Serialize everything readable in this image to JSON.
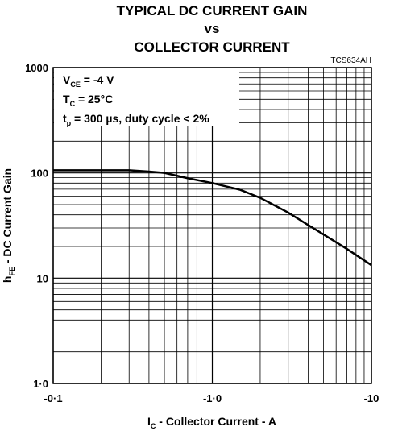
{
  "chart_data": {
    "type": "line",
    "title": [
      "TYPICAL DC CURRENT GAIN",
      "vs",
      "COLLECTOR CURRENT"
    ],
    "code": "TCS634AH",
    "x_label": {
      "symbol": "I",
      "sub": "C",
      "text": " - Collector Current - A"
    },
    "y_label": {
      "symbol": "h",
      "sub": "FE",
      "text": " - DC Current Gain"
    },
    "annotations": [
      {
        "symbol": "V",
        "sub": "CE",
        "text": " = -4 V"
      },
      {
        "symbol": "T",
        "sub": "C",
        "text": " = 25°C"
      },
      {
        "symbol": "t",
        "sub": "p",
        "text": " = 300 µs, duty cycle < 2%"
      }
    ],
    "x_log": true,
    "y_log": true,
    "grid": true,
    "xlim": [
      -0.1,
      -10
    ],
    "xticks": [
      {
        "value": -0.1,
        "label": "-0·1"
      },
      {
        "value": -1,
        "label": "-1·0"
      },
      -10
    ],
    "ylim": [
      1,
      1000
    ],
    "yticks": [
      {
        "value": 1,
        "label": "1·0"
      },
      10,
      100,
      1000
    ],
    "x": [
      -0.1,
      -0.2,
      -0.3,
      -0.4,
      -0.5,
      -0.7,
      -1,
      -1.5,
      -2,
      -3,
      -4,
      -5,
      -7,
      -10
    ],
    "series": [
      {
        "color": "#000000",
        "values": [
          106,
          106,
          106,
          103,
          100,
          89,
          80,
          69,
          58,
          42,
          32,
          26,
          19,
          13.3
        ]
      }
    ]
  }
}
